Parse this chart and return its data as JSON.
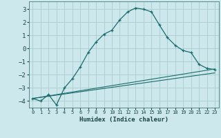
{
  "xlabel": "Humidex (Indice chaleur)",
  "bg_color": "#cce8ec",
  "grid_color": "#aacccc",
  "line_color": "#1a6b6b",
  "xlim": [
    -0.5,
    23.5
  ],
  "ylim": [
    -4.5,
    3.6
  ],
  "xticks": [
    0,
    1,
    2,
    3,
    4,
    5,
    6,
    7,
    8,
    9,
    10,
    11,
    12,
    13,
    14,
    15,
    16,
    17,
    18,
    19,
    20,
    21,
    22,
    23
  ],
  "yticks": [
    -4,
    -3,
    -2,
    -1,
    0,
    1,
    2,
    3
  ],
  "line1_x": [
    0,
    1,
    2,
    3,
    4,
    5,
    6,
    7,
    8,
    9,
    10,
    11,
    12,
    13,
    14,
    15,
    16,
    17,
    18,
    19,
    20,
    21,
    22,
    23
  ],
  "line1_y": [
    -3.8,
    -4.0,
    -3.5,
    -4.3,
    -3.0,
    -2.3,
    -1.4,
    -0.3,
    0.5,
    1.1,
    1.4,
    2.2,
    2.8,
    3.1,
    3.0,
    2.8,
    1.8,
    0.85,
    0.25,
    -0.15,
    -0.3,
    -1.2,
    -1.5,
    -1.6
  ],
  "line2_x": [
    0,
    23
  ],
  "line2_y": [
    -3.8,
    -1.55
  ],
  "line3_x": [
    0,
    23
  ],
  "line3_y": [
    -3.8,
    -1.85
  ]
}
